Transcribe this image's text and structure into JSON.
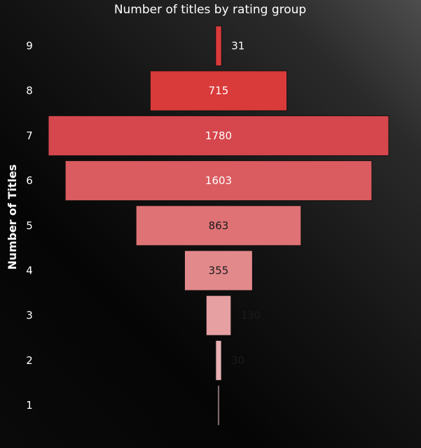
{
  "chart_data": {
    "type": "bar",
    "orientation": "funnel",
    "title": "Number of titles by rating group",
    "ylabel": "Number of Titles",
    "categories": [
      "9",
      "8",
      "7",
      "6",
      "5",
      "4",
      "3",
      "2",
      "1"
    ],
    "values": [
      31,
      715,
      1780,
      1603,
      863,
      355,
      130,
      30,
      2
    ],
    "value_labels": [
      "31",
      "715",
      "1780",
      "1603",
      "863",
      "355",
      "130",
      "30",
      ""
    ],
    "colors": [
      "#d93a3a",
      "#d93a3a",
      "#d5474d",
      "#da5c60",
      "#de7275",
      "#e2898c",
      "#e6a0a2",
      "#e9b1b3",
      "#ecc0c2"
    ],
    "label_colors": [
      "#ffffff",
      "#ffffff",
      "#ffffff",
      "#ffffff",
      "#1a1a1a",
      "#1a1a1a",
      "#1a1a1a",
      "#1a1a1a",
      "#1a1a1a"
    ],
    "grid": false,
    "legend": "none"
  }
}
